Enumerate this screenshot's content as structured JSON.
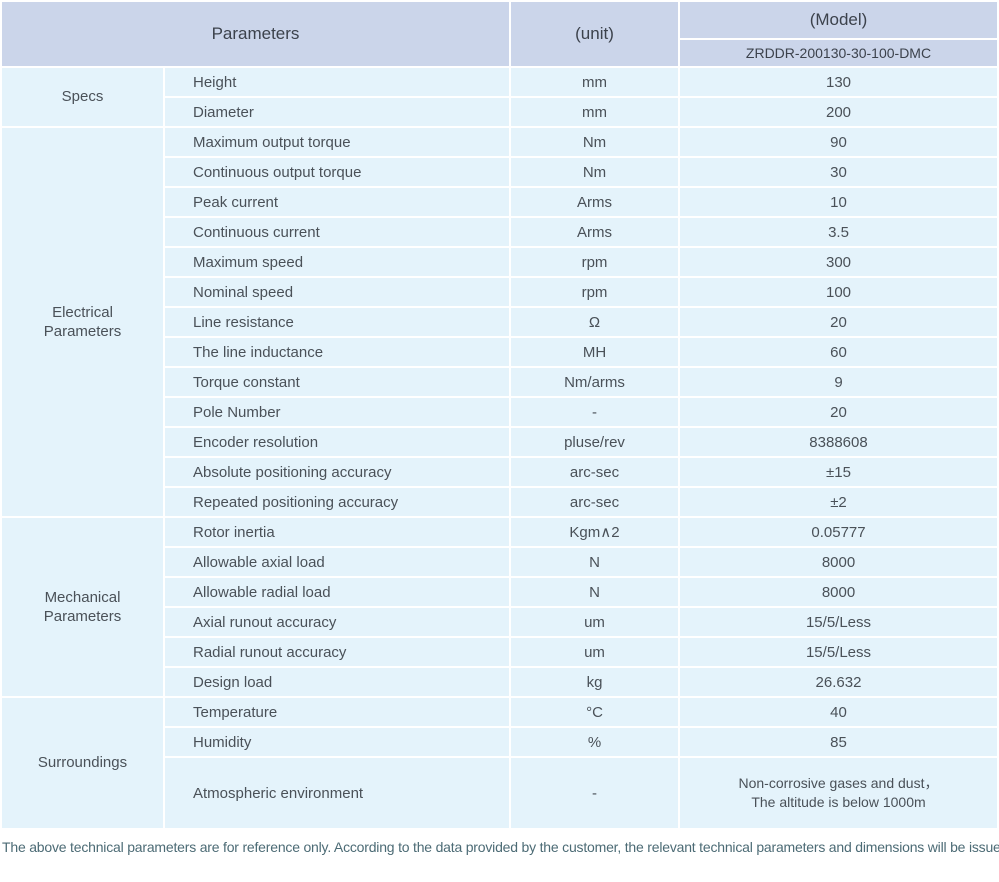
{
  "header": {
    "parameters_label": "Parameters",
    "unit_label": "(unit)",
    "model_label": "(Model)",
    "model_value": "ZRDDR-200130-30-100-DMC"
  },
  "table": {
    "sections": [
      {
        "group": "Specs",
        "rows": [
          {
            "param": "Height",
            "unit": "mm",
            "value": "130"
          },
          {
            "param": "Diameter",
            "unit": "mm",
            "value": "200"
          }
        ]
      },
      {
        "group": "Electrical\nParameters",
        "rows": [
          {
            "param": "Maximum output torque",
            "unit": "Nm",
            "value": "90"
          },
          {
            "param": "Continuous output torque",
            "unit": "Nm",
            "value": "30"
          },
          {
            "param": "Peak current",
            "unit": "Arms",
            "value": "10"
          },
          {
            "param": "Continuous current",
            "unit": "Arms",
            "value": "3.5"
          },
          {
            "param": "Maximum speed",
            "unit": "rpm",
            "value": "300"
          },
          {
            "param": "Nominal speed",
            "unit": "rpm",
            "value": "100"
          },
          {
            "param": "Line resistance",
            "unit": "Ω",
            "value": "20"
          },
          {
            "param": "The line inductance",
            "unit": "MH",
            "value": "60"
          },
          {
            "param": "Torque constant",
            "unit": "Nm/arms",
            "value": "9"
          },
          {
            "param": "Pole Number",
            "unit": "-",
            "value": "20"
          },
          {
            "param": "Encoder resolution",
            "unit": "pluse/rev",
            "value": "8388608"
          },
          {
            "param": "Absolute positioning accuracy",
            "unit": "arc-sec",
            "value": "±15"
          },
          {
            "param": "Repeated positioning accuracy",
            "unit": "arc-sec",
            "value": "±2"
          }
        ]
      },
      {
        "group": "Mechanical\nParameters",
        "rows": [
          {
            "param": "Rotor inertia",
            "unit": "Kgm∧2",
            "value": "0.05777"
          },
          {
            "param": "Allowable axial load",
            "unit": "N",
            "value": "8000"
          },
          {
            "param": "Allowable radial load",
            "unit": "N",
            "value": "8000"
          },
          {
            "param": "Axial runout accuracy",
            "unit": "um",
            "value": "15/5/Less"
          },
          {
            "param": "Radial runout accuracy",
            "unit": "um",
            "value": "15/5/Less"
          },
          {
            "param": "Design load",
            "unit": "kg",
            "value": "26.632"
          }
        ]
      },
      {
        "group": "Surroundings",
        "rows": [
          {
            "param": "Temperature",
            "unit": "°C",
            "value": "40"
          },
          {
            "param": "Humidity",
            "unit": "%",
            "value": "85"
          },
          {
            "param": "Atmospheric environment",
            "unit": "-",
            "value": "Non-corrosive gases and dust，\nThe altitude is below 1000m",
            "tall": true
          }
        ]
      }
    ]
  },
  "footer": {
    "note": "The above technical parameters are for reference only. According to the data provided by the customer, the relevant technical parameters and dimensions will be issued."
  },
  "colors": {
    "header_bg": "#cbd5ea",
    "row_bg": "#e4f3fb",
    "separator": "#ffffff",
    "body_text": "#4a5158",
    "footnote_text": "#4c6b75"
  }
}
